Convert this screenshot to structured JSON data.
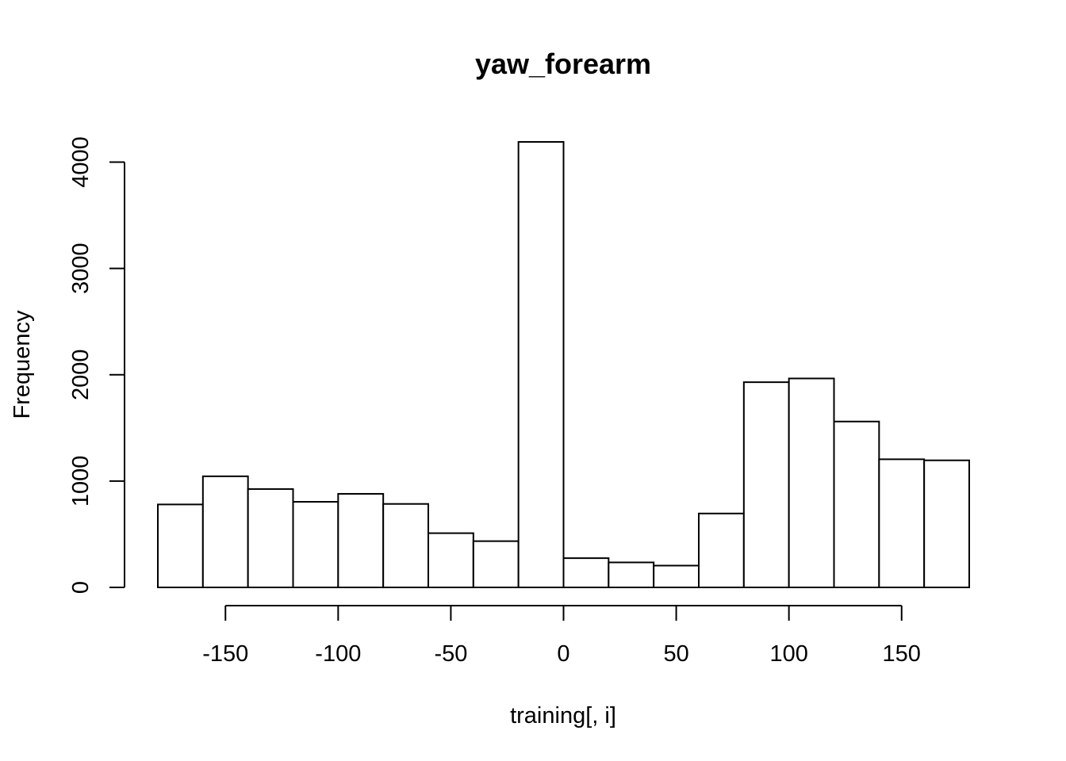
{
  "chart_data": {
    "type": "bar",
    "title": "yaw_forearm",
    "xlabel": "training[, i]",
    "ylabel": "Frequency",
    "bin_edges": [
      -180,
      -160,
      -140,
      -120,
      -100,
      -80,
      -60,
      -40,
      -20,
      0,
      20,
      40,
      60,
      80,
      100,
      120,
      140,
      160,
      180
    ],
    "values": [
      780,
      1045,
      925,
      805,
      880,
      785,
      510,
      435,
      4190,
      275,
      235,
      205,
      695,
      1930,
      1965,
      1560,
      1205,
      1195
    ],
    "xlim": [
      -180,
      180
    ],
    "ylim": [
      0,
      4190
    ],
    "xticks": [
      -150,
      -100,
      -50,
      0,
      50,
      100,
      150
    ],
    "yticks": [
      0,
      1000,
      2000,
      3000,
      4000
    ],
    "grid": false,
    "legend": false,
    "colors": {
      "bar_fill": "#ffffff",
      "bar_stroke": "#000000"
    }
  }
}
